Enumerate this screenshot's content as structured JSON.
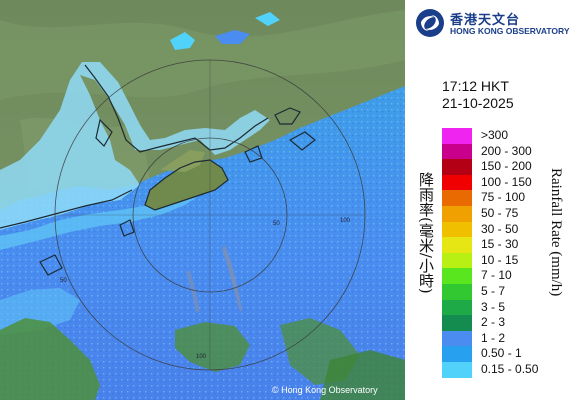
{
  "logo": {
    "chinese": "香港天文台",
    "english": "HONG KONG OBSERVATORY"
  },
  "time_label": "17:12 HKT",
  "date_label": "21-10-2025",
  "legend": {
    "title_chinese": "降雨率(毫米/小時)",
    "title_english": "Rainfall Rate (mm/h)",
    "items": [
      {
        "label": ">300",
        "color": "#f024f0"
      },
      {
        "label": "200 - 300",
        "color": "#c8008c"
      },
      {
        "label": "150 - 200",
        "color": "#b40014"
      },
      {
        "label": "100 - 150",
        "color": "#f00000"
      },
      {
        "label": "75 - 100",
        "color": "#e86a00"
      },
      {
        "label": "50 - 75",
        "color": "#f0a000"
      },
      {
        "label": "30 - 50",
        "color": "#f0c000"
      },
      {
        "label": "15 - 30",
        "color": "#e6e614"
      },
      {
        "label": "10 - 15",
        "color": "#b8f014"
      },
      {
        "label": "7 - 10",
        "color": "#5ae61e"
      },
      {
        "label": "5 - 7",
        "color": "#32c832"
      },
      {
        "label": "3 - 5",
        "color": "#1eaa46"
      },
      {
        "label": "2 - 3",
        "color": "#148c50"
      },
      {
        "label": "1 - 2",
        "color": "#4a8cf0"
      },
      {
        "label": "0.50 - 1",
        "color": "#28a0f0"
      },
      {
        "label": "0.15 - 0.50",
        "color": "#50d2fa"
      }
    ]
  },
  "range_ring_labels": [
    "50",
    "100",
    "50",
    "100"
  ],
  "copyright": "© Hong Kong Observatory"
}
